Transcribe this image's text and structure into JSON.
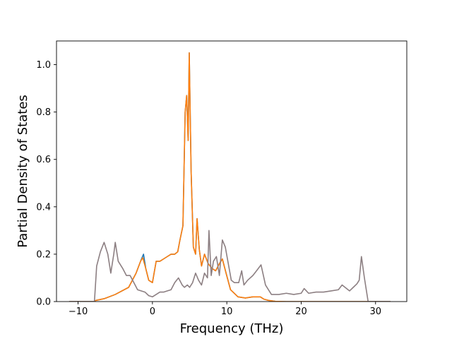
{
  "chart_data": {
    "type": "line",
    "xlabel": "Frequency (THz)",
    "ylabel": "Partial Density of States",
    "xlim": [
      -12.9,
      34.2
    ],
    "ylim": [
      0,
      1.1
    ],
    "xticks": [
      -10,
      0,
      10,
      20,
      30
    ],
    "yticks": [
      0.0,
      0.2,
      0.4,
      0.6,
      0.8,
      1.0
    ],
    "xtick_labels": [
      "−10",
      "0",
      "10",
      "20",
      "30"
    ],
    "ytick_labels": [
      "0.0",
      "0.2",
      "0.4",
      "0.6",
      "0.8",
      "1.0"
    ],
    "grid": false,
    "legend": "none",
    "series": [
      {
        "color": "#1f77b4",
        "x": [
          -11.2,
          -7.8,
          -7.6,
          -6.5,
          -5.0,
          -3.2,
          -2.2,
          -1.6,
          -1.2,
          -0.9,
          -0.5,
          0.0,
          0.5,
          1.0,
          1.5,
          2.0,
          2.5,
          3.0,
          3.4,
          3.7,
          4.1,
          4.4,
          4.6,
          4.8,
          4.95,
          5.2,
          5.5,
          5.8,
          6.0,
          6.3,
          6.6,
          7.0,
          7.5,
          8.0,
          8.5,
          9.0,
          9.4,
          9.9,
          10.5,
          11.5,
          12.5,
          13.5,
          14.5,
          15.0,
          15.6,
          16.5,
          18,
          20,
          25,
          28,
          29,
          32
        ],
        "y": [
          0,
          0,
          0.005,
          0.012,
          0.03,
          0.06,
          0.12,
          0.17,
          0.2,
          0.14,
          0.09,
          0.08,
          0.17,
          0.17,
          0.18,
          0.19,
          0.2,
          0.2,
          0.21,
          0.26,
          0.32,
          0.8,
          0.87,
          0.68,
          1.05,
          0.55,
          0.23,
          0.2,
          0.35,
          0.22,
          0.15,
          0.2,
          0.16,
          0.14,
          0.13,
          0.16,
          0.18,
          0.12,
          0.05,
          0.02,
          0.015,
          0.02,
          0.02,
          0.01,
          0.005,
          0.001,
          0,
          0,
          0,
          0,
          0,
          0
        ]
      },
      {
        "color": "#ff7f0e",
        "x": [
          -11.2,
          -7.8,
          -7.6,
          -6.5,
          -5.0,
          -3.2,
          -2.2,
          -1.6,
          -1.3,
          -0.9,
          -0.5,
          0.0,
          0.5,
          1.0,
          1.5,
          2.0,
          2.5,
          3.0,
          3.4,
          3.7,
          4.1,
          4.4,
          4.6,
          4.8,
          4.95,
          5.2,
          5.5,
          5.8,
          6.0,
          6.3,
          6.6,
          7.0,
          7.5,
          8.0,
          8.5,
          9.0,
          9.4,
          9.9,
          10.5,
          11.5,
          12.5,
          13.5,
          14.5,
          15.0,
          15.6,
          16.5,
          18,
          20,
          25,
          28,
          29,
          32
        ],
        "y": [
          0,
          0,
          0.005,
          0.012,
          0.03,
          0.06,
          0.12,
          0.17,
          0.185,
          0.14,
          0.09,
          0.08,
          0.17,
          0.17,
          0.18,
          0.19,
          0.2,
          0.2,
          0.21,
          0.26,
          0.32,
          0.8,
          0.87,
          0.68,
          1.05,
          0.55,
          0.23,
          0.2,
          0.35,
          0.22,
          0.15,
          0.2,
          0.16,
          0.14,
          0.13,
          0.16,
          0.18,
          0.12,
          0.05,
          0.02,
          0.015,
          0.02,
          0.02,
          0.01,
          0.005,
          0.001,
          0,
          0,
          0,
          0,
          0,
          0
        ]
      },
      {
        "color": "#8c7f82",
        "x": [
          -11.2,
          -7.8,
          -7.5,
          -7.0,
          -6.5,
          -6.0,
          -5.6,
          -5.2,
          -5.0,
          -4.6,
          -4.0,
          -3.5,
          -3.0,
          -2.5,
          -2.0,
          -1.0,
          -0.5,
          0.0,
          0.5,
          1.0,
          1.5,
          2.0,
          2.5,
          3.0,
          3.5,
          4.0,
          4.3,
          4.7,
          5.0,
          5.4,
          5.8,
          6.2,
          6.6,
          7.0,
          7.4,
          7.6,
          7.9,
          8.2,
          8.6,
          9.0,
          9.4,
          9.8,
          10.2,
          10.6,
          11.0,
          11.6,
          12.0,
          12.3,
          12.8,
          13.5,
          14.0,
          14.6,
          15.2,
          16.0,
          17.0,
          18.0,
          19.0,
          20.0,
          20.4,
          21.0,
          22.0,
          23.0,
          24.0,
          25.0,
          25.5,
          26.5,
          27.0,
          27.5,
          27.8,
          28.1,
          28.5,
          29.0,
          32.0
        ],
        "y": [
          0,
          0,
          0.15,
          0.21,
          0.25,
          0.2,
          0.12,
          0.2,
          0.25,
          0.17,
          0.14,
          0.11,
          0.11,
          0.08,
          0.05,
          0.04,
          0.025,
          0.02,
          0.03,
          0.04,
          0.04,
          0.045,
          0.05,
          0.08,
          0.1,
          0.07,
          0.06,
          0.07,
          0.06,
          0.08,
          0.12,
          0.09,
          0.07,
          0.12,
          0.1,
          0.3,
          0.11,
          0.17,
          0.19,
          0.11,
          0.26,
          0.23,
          0.16,
          0.09,
          0.08,
          0.08,
          0.13,
          0.07,
          0.09,
          0.11,
          0.13,
          0.155,
          0.07,
          0.03,
          0.03,
          0.035,
          0.03,
          0.035,
          0.055,
          0.035,
          0.04,
          0.04,
          0.045,
          0.05,
          0.07,
          0.045,
          0.06,
          0.075,
          0.09,
          0.19,
          0.1,
          0,
          0
        ]
      }
    ]
  }
}
